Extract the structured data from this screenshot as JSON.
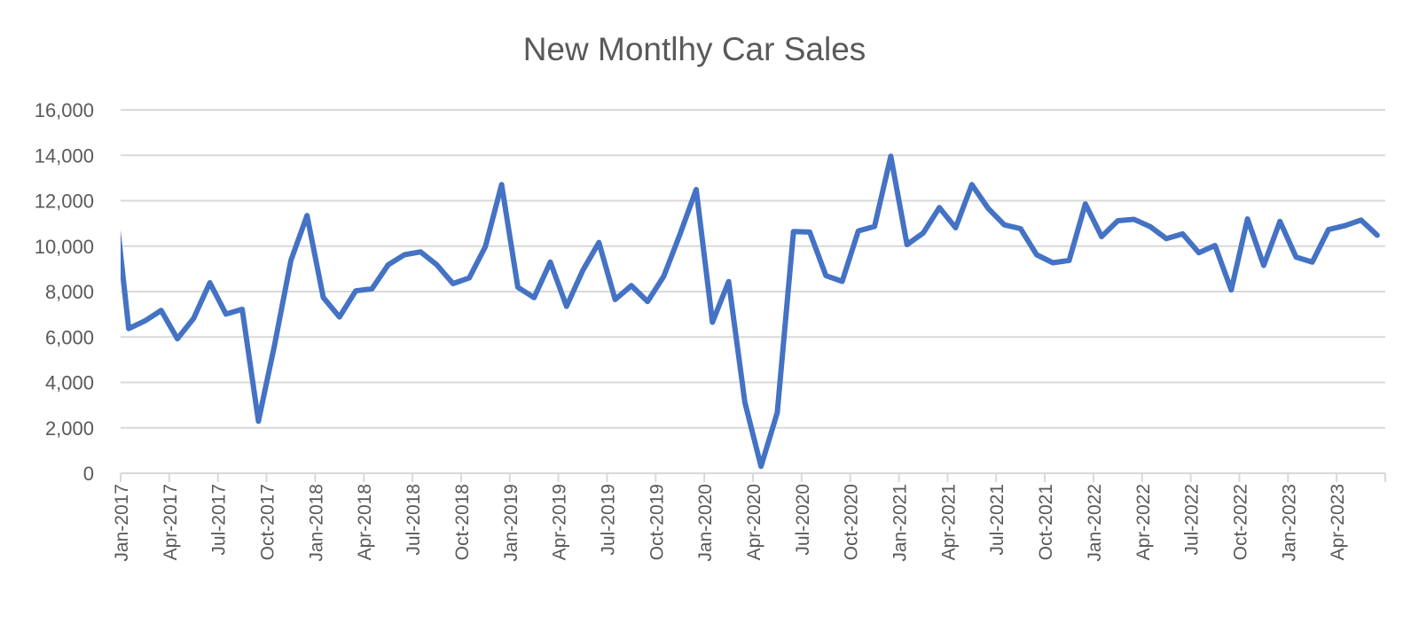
{
  "chart_data": {
    "type": "line",
    "title": "New Montlhy Car Sales",
    "xlabel": "",
    "ylabel": "",
    "ylim": [
      0,
      16000
    ],
    "yticks": [
      0,
      2000,
      4000,
      6000,
      8000,
      10000,
      12000,
      14000,
      16000
    ],
    "ytick_labels": [
      "0",
      "2,000",
      "4,000",
      "6,000",
      "8,000",
      "10,000",
      "12,000",
      "14,000",
      "16,000"
    ],
    "xlim": [
      "Jan-2017",
      "Jul-2023"
    ],
    "xtick_labels": [
      "Jan-2017",
      "Apr-2017",
      "Jul-2017",
      "Oct-2017",
      "Jan-2018",
      "Apr-2018",
      "Jul-2018",
      "Oct-2018",
      "Jan-2019",
      "Apr-2019",
      "Jul-2019",
      "Oct-2019",
      "Jan-2020",
      "Apr-2020",
      "Jul-2020",
      "Oct-2020",
      "Jan-2021",
      "Apr-2021",
      "Jul-2021",
      "Oct-2021",
      "Jan-2022",
      "Apr-2022",
      "Jul-2022",
      "Oct-2022",
      "Jan-2023",
      "Apr-2023"
    ],
    "grid": true,
    "legend": "none",
    "line_color": "#4472c4",
    "series": [
      {
        "x": [
          "Dec-2016",
          "Jan-2017",
          "Feb-2017",
          "Mar-2017",
          "Apr-2017",
          "May-2017",
          "Jun-2017",
          "Jul-2017",
          "Aug-2017",
          "Sep-2017",
          "Oct-2017",
          "Nov-2017",
          "Dec-2017",
          "Jan-2018",
          "Feb-2018",
          "Mar-2018",
          "Apr-2018",
          "May-2018",
          "Jun-2018",
          "Jul-2018",
          "Aug-2018",
          "Sep-2018",
          "Oct-2018",
          "Nov-2018",
          "Dec-2018",
          "Jan-2019",
          "Feb-2019",
          "Mar-2019",
          "Apr-2019",
          "May-2019",
          "Jun-2019",
          "Jul-2019",
          "Aug-2019",
          "Sep-2019",
          "Oct-2019",
          "Nov-2019",
          "Dec-2019",
          "Jan-2020",
          "Feb-2020",
          "Mar-2020",
          "Apr-2020",
          "May-2020",
          "Jun-2020",
          "Jul-2020",
          "Aug-2020",
          "Sep-2020",
          "Oct-2020",
          "Nov-2020",
          "Dec-2020",
          "Jan-2021",
          "Feb-2021",
          "Mar-2021",
          "Apr-2021",
          "May-2021",
          "Jun-2021",
          "Jul-2021",
          "Aug-2021",
          "Sep-2021",
          "Oct-2021",
          "Nov-2021",
          "Dec-2021",
          "Jan-2022",
          "Feb-2022",
          "Mar-2022",
          "Apr-2022",
          "May-2022",
          "Jun-2022",
          "Jul-2022",
          "Aug-2022",
          "Sep-2022",
          "Oct-2022",
          "Nov-2022",
          "Dec-2022",
          "Jan-2023",
          "Feb-2023",
          "Mar-2023",
          "Apr-2023",
          "May-2023",
          "Jun-2023"
        ],
        "values": [
          12900,
          6370,
          6710,
          7170,
          5920,
          6820,
          8390,
          7010,
          7220,
          2290,
          5670,
          9370,
          11350,
          7740,
          6880,
          8030,
          8120,
          9180,
          9620,
          9750,
          9180,
          8350,
          8600,
          9980,
          12710,
          8190,
          7730,
          9300,
          7350,
          8920,
          10160,
          7650,
          8260,
          7560,
          8670,
          10520,
          12490,
          6650,
          8440,
          3120,
          300,
          2670,
          10640,
          10620,
          8700,
          8450,
          10670,
          10870,
          13960,
          10070,
          10580,
          11700,
          10810,
          12710,
          11670,
          10940,
          10770,
          9620,
          9270,
          9370,
          11860,
          10420,
          11120,
          11180,
          10860,
          10330,
          10540,
          9710,
          10030,
          8070,
          11200,
          9150,
          11090,
          9520,
          9300,
          10730,
          10900,
          11150,
          10480
        ]
      }
    ]
  }
}
